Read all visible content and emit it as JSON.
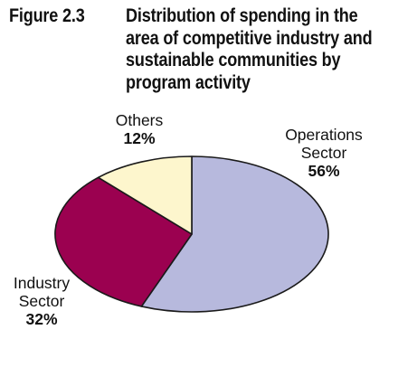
{
  "figure": {
    "label": "Figure 2.3",
    "title_lines": [
      "Distribution of spending in the",
      "area of competitive industry and",
      "sustainable communities by",
      "program activity"
    ]
  },
  "chart_data": {
    "type": "pie",
    "title": "Distribution of spending in the area of competitive industry and sustainable communities by program activity",
    "slices": [
      {
        "label_lines": [
          "Operations",
          "Sector"
        ],
        "percent_label": "56%",
        "value": 56,
        "color": "#b7b9dd"
      },
      {
        "label_lines": [
          "Industry",
          "Sector"
        ],
        "percent_label": "32%",
        "value": 32,
        "color": "#9b0150"
      },
      {
        "label_lines": [
          "Others"
        ],
        "percent_label": "12%",
        "value": 12,
        "color": "#fdf6cd"
      }
    ],
    "start_angle_deg": 0,
    "direction": "clockwise",
    "legend": "none"
  }
}
